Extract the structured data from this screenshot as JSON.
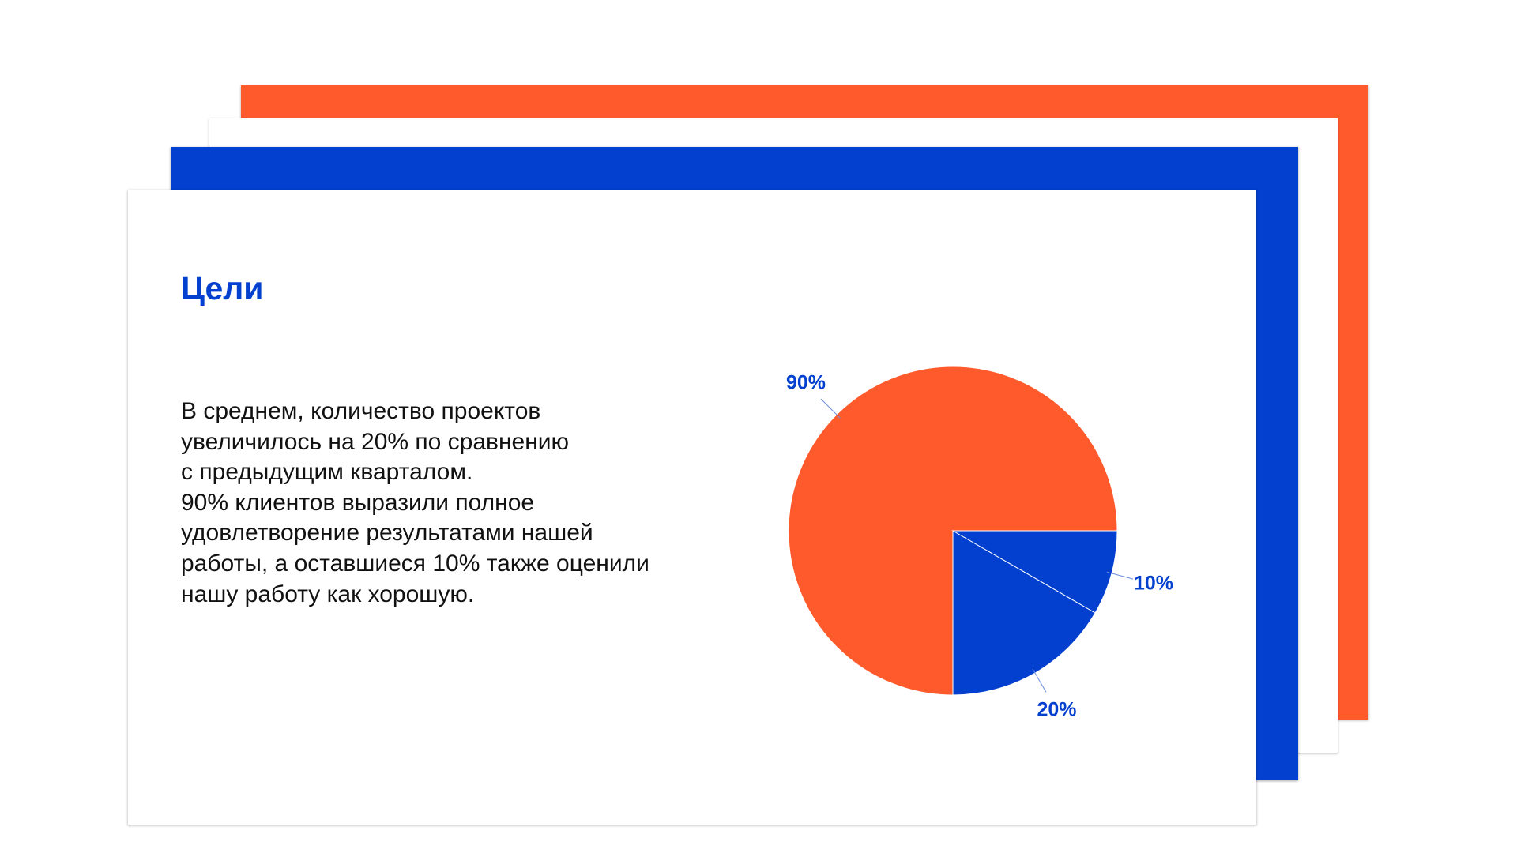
{
  "slide": {
    "title": "Цели",
    "body_lines": [
      "В среднем, количество проектов",
      "увеличилось на 20% по сравнению",
      "с предыдущим кварталом.",
      "90% клиентов выразили полное",
      "удовлетворение результатами нашей",
      "работы, а оставшиеся 10% также оценили",
      "нашу работу как хорошую."
    ]
  },
  "chart_data": {
    "type": "pie",
    "values": [
      90,
      20,
      10
    ],
    "value_labels": [
      "90%",
      "20%",
      "10%"
    ],
    "colors": [
      "#ff5a2c",
      "#0340d0",
      "#0340d0"
    ]
  }
}
